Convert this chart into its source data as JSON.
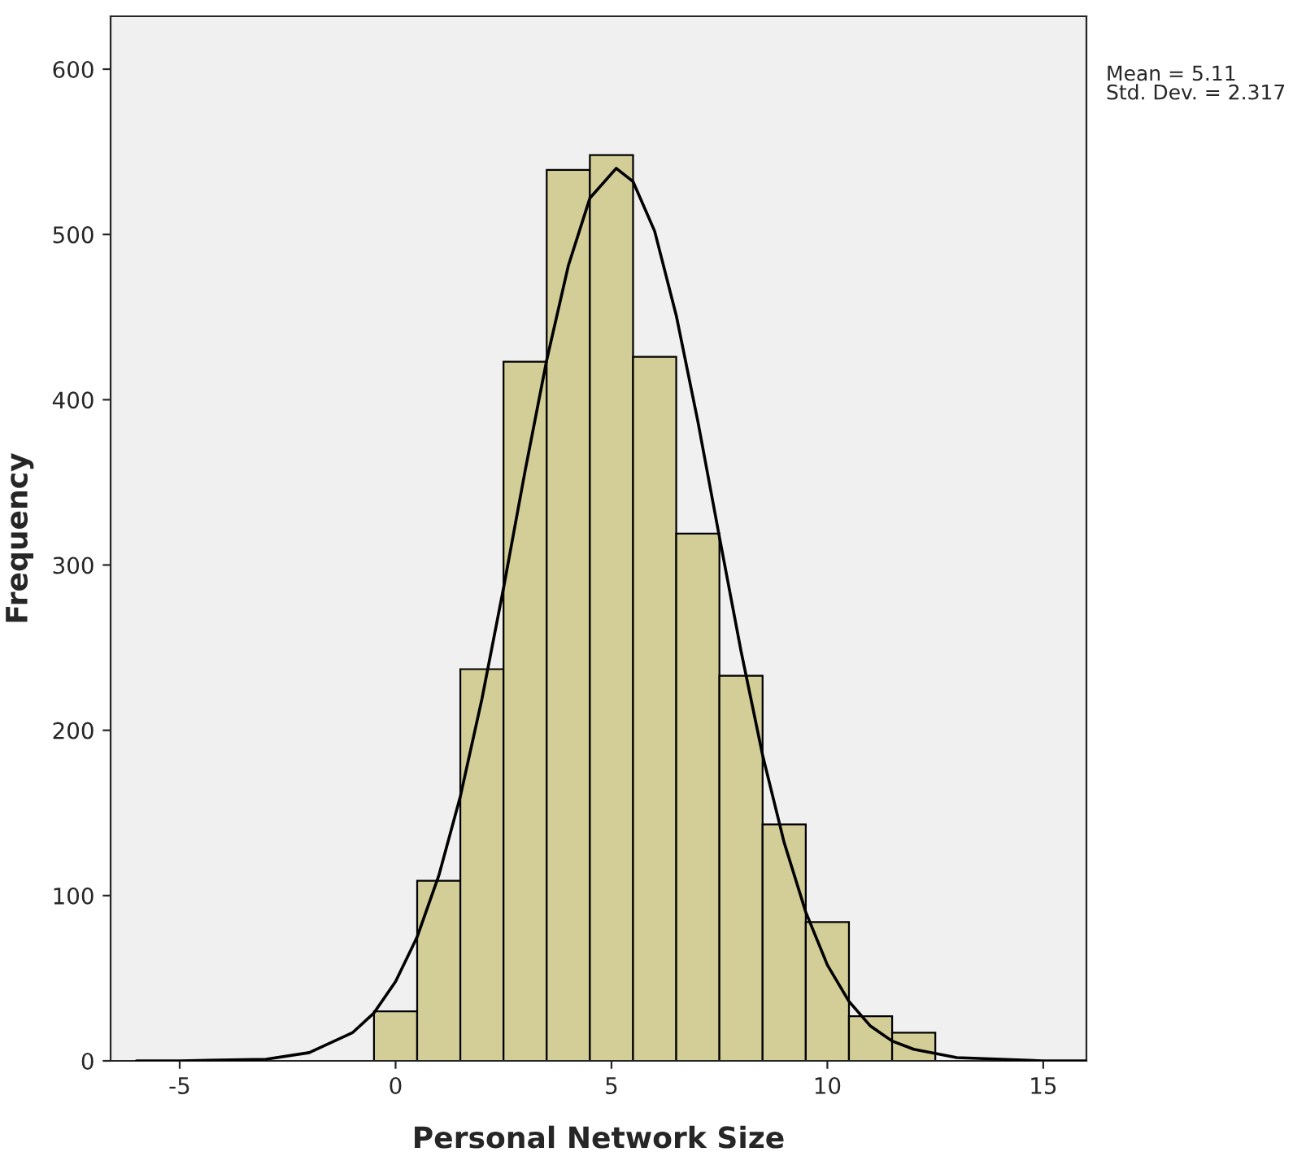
{
  "chart_data": {
    "type": "histogram",
    "xlabel": "Personal Network Size",
    "ylabel": "Frequency",
    "bins": [
      -0.5,
      0.5,
      1.5,
      2.5,
      3.5,
      4.5,
      5.5,
      6.5,
      7.5,
      8.5,
      9.5,
      10.5,
      11.5,
      12.5
    ],
    "values": [
      30,
      109,
      237,
      423,
      539,
      548,
      426,
      319,
      233,
      143,
      84,
      27,
      17
    ],
    "color": "#d3ce97",
    "series": [
      {
        "type": "line",
        "color": "#000000",
        "x": [
          -6,
          -5,
          -3,
          -2,
          -1,
          -0.5,
          0,
          0.5,
          1,
          1.5,
          2,
          2.5,
          3,
          3.5,
          4,
          4.5,
          5.11,
          5.5,
          6,
          6.5,
          7,
          7.5,
          8,
          8.5,
          9,
          9.5,
          10,
          10.5,
          11,
          11.5,
          12,
          13,
          15,
          16
        ],
        "values": [
          0,
          0,
          1,
          5,
          17,
          29,
          48,
          75,
          112,
          160,
          219,
          286,
          357,
          424,
          481,
          522,
          540,
          532,
          502,
          451,
          387,
          317,
          248,
          185,
          132,
          90,
          58,
          36,
          21,
          12,
          7,
          2,
          0,
          0
        ]
      }
    ],
    "xlim": [
      -6.6,
      16
    ],
    "ylim": [
      0,
      632
    ],
    "xticks": [
      -5,
      0,
      5,
      10,
      15
    ],
    "yticks": [
      0,
      100,
      200,
      300,
      400,
      500,
      600
    ],
    "annotations": [
      "Mean = 5.11\nStd. Dev. = 2.317"
    ],
    "grid": false,
    "legend": false
  }
}
